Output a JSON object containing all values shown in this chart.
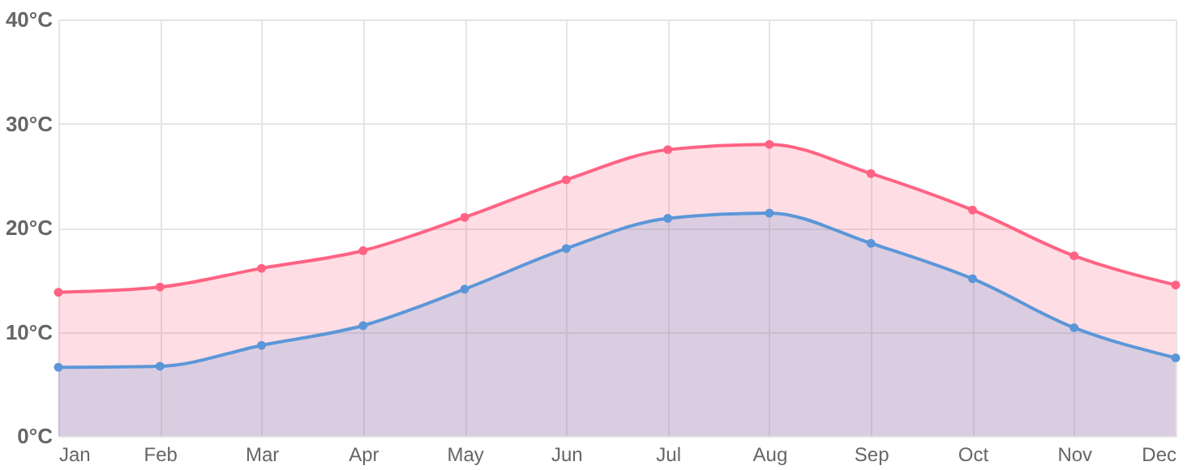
{
  "chart_data": {
    "type": "area",
    "categories": [
      "Jan",
      "Feb",
      "Mar",
      "Apr",
      "May",
      "Jun",
      "Jul",
      "Aug",
      "Sep",
      "Oct",
      "Nov",
      "Dec"
    ],
    "series": [
      {
        "color": "#ff6384",
        "values": [
          13.8,
          14.3,
          16.1,
          17.8,
          21.0,
          24.6,
          27.5,
          28.0,
          25.2,
          21.7,
          17.3,
          14.5
        ]
      },
      {
        "color": "#5b97d8",
        "values": [
          6.6,
          6.7,
          8.7,
          10.6,
          14.1,
          18.0,
          20.9,
          21.4,
          18.5,
          15.1,
          10.4,
          7.5
        ]
      }
    ],
    "ylim": [
      0,
      40
    ],
    "yticks": [
      {
        "value": 0,
        "label": "0°C"
      },
      {
        "value": 10,
        "label": "10°C"
      },
      {
        "value": 20,
        "label": "20°C"
      },
      {
        "value": 30,
        "label": "30°C"
      },
      {
        "value": 40,
        "label": "40°C"
      }
    ],
    "grid": true,
    "marker": "circle",
    "line_style": "solid"
  }
}
